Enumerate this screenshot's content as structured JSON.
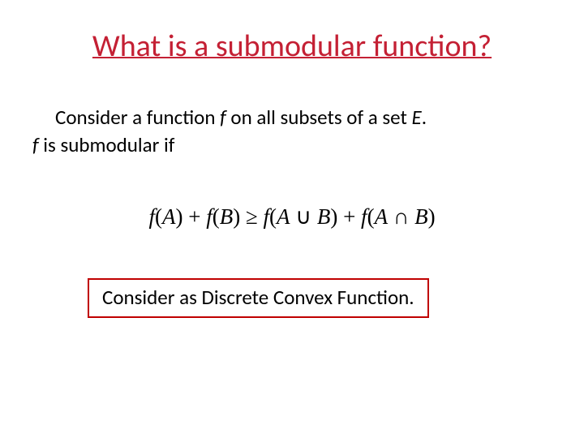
{
  "colors": {
    "title_color": "#c42034",
    "body_color": "#000000",
    "box_border": "#c00000",
    "background": "#ffffff"
  },
  "typography": {
    "title_fontsize": 38,
    "body_fontsize": 25,
    "formula_fontsize": 27,
    "title_underline": true,
    "font_family": "Calibri",
    "formula_font_family": "Times New Roman"
  },
  "title": "What is a submodular function?",
  "body": {
    "line1_prefix": "Consider a function ",
    "line1_var1": "f",
    "line1_middle": " on all subsets of a set ",
    "line1_var2": "E",
    "line1_suffix": ".",
    "line2_var": "f",
    "line2_rest": " is submodular if"
  },
  "formula": {
    "f": "f",
    "A": "A",
    "B": "B",
    "lp": "(",
    "rp": ")",
    "plus": " + ",
    "ge": " ≥ ",
    "union": " ∪ ",
    "intersect": " ∩ "
  },
  "callout": "Consider as  Discrete Convex Function."
}
